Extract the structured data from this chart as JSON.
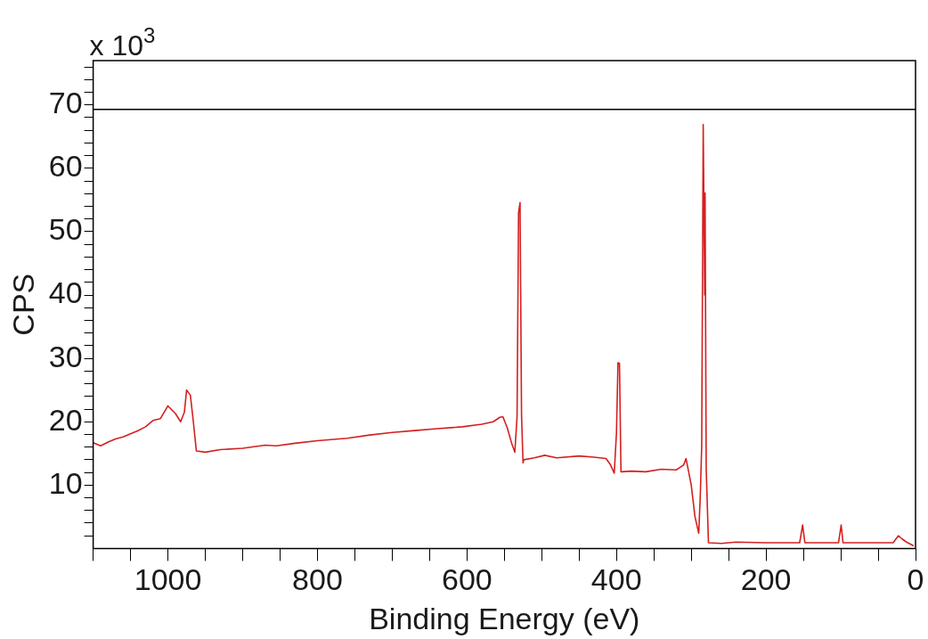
{
  "chart_data": {
    "type": "line",
    "xlabel": "Binding Energy (eV)",
    "ylabel": "CPS",
    "annotations": [
      "x 10$^{3}$"
    ],
    "xlim": [
      1100,
      0
    ],
    "ylim": [
      0,
      77
    ],
    "xticks": [
      {
        "value": 1100,
        "label": null
      },
      {
        "value": 1050,
        "label": null
      },
      1000,
      {
        "value": 950,
        "label": null
      },
      {
        "value": 900,
        "label": null
      },
      {
        "value": 850,
        "label": null
      },
      800,
      {
        "value": 750,
        "label": null
      },
      {
        "value": 700,
        "label": null
      },
      {
        "value": 650,
        "label": null
      },
      600,
      {
        "value": 550,
        "label": null
      },
      {
        "value": 500,
        "label": null
      },
      {
        "value": 450,
        "label": null
      },
      400,
      {
        "value": 350,
        "label": null
      },
      {
        "value": 300,
        "label": null
      },
      {
        "value": 250,
        "label": null
      },
      200,
      {
        "value": 150,
        "label": null
      },
      {
        "value": 100,
        "label": null
      },
      {
        "value": 50,
        "label": null
      },
      0
    ],
    "yticks": [
      {
        "value": 2,
        "label": null
      },
      {
        "value": 4,
        "label": null
      },
      {
        "value": 6,
        "label": null
      },
      {
        "value": 8,
        "label": null
      },
      10,
      {
        "value": 12,
        "label": null
      },
      {
        "value": 14,
        "label": null
      },
      {
        "value": 16,
        "label": null
      },
      {
        "value": 18,
        "label": null
      },
      20,
      {
        "value": 22,
        "label": null
      },
      {
        "value": 24,
        "label": null
      },
      {
        "value": 26,
        "label": null
      },
      {
        "value": 28,
        "label": null
      },
      30,
      {
        "value": 32,
        "label": null
      },
      {
        "value": 34,
        "label": null
      },
      {
        "value": 36,
        "label": null
      },
      {
        "value": 38,
        "label": null
      },
      40,
      {
        "value": 42,
        "label": null
      },
      {
        "value": 44,
        "label": null
      },
      {
        "value": 46,
        "label": null
      },
      {
        "value": 48,
        "label": null
      },
      50,
      {
        "value": 52,
        "label": null
      },
      {
        "value": 54,
        "label": null
      },
      {
        "value": 56,
        "label": null
      },
      {
        "value": 58,
        "label": null
      },
      60,
      {
        "value": 62,
        "label": null
      },
      {
        "value": 64,
        "label": null
      },
      {
        "value": 66,
        "label": null
      },
      {
        "value": 68,
        "label": null
      },
      70,
      {
        "value": 72,
        "label": null
      },
      {
        "value": 74,
        "label": null
      },
      {
        "value": 76,
        "label": null
      }
    ],
    "ref_lines": [
      {
        "axis": "y",
        "value": 69.3,
        "color": "#000000"
      }
    ],
    "marker": "none",
    "series": [
      {
        "color": "#d42020",
        "x": [
          1100,
          1090,
          1080,
          1070,
          1060,
          1050,
          1040,
          1030,
          1020,
          1010,
          1000,
          990,
          983,
          978,
          975,
          970,
          966,
          962,
          950,
          930,
          900,
          870,
          855,
          830,
          800,
          760,
          730,
          700,
          670,
          640,
          606,
          580,
          565,
          556,
          552,
          546,
          540,
          536,
          533,
          531,
          529,
          527,
          525,
          524,
          510,
          496,
          480,
          450,
          430,
          414,
          408,
          403,
          400,
          398,
          396,
          394,
          380,
          361,
          340,
          320,
          310,
          307,
          300,
          295,
          290,
          288,
          286,
          284,
          282,
          281.5,
          280,
          277,
          260,
          240,
          200,
          155,
          151,
          148,
          120,
          103,
          99.5,
          97,
          60,
          30,
          23,
          18,
          12,
          2.5
        ],
        "values": [
          16.7,
          16.2,
          16.8,
          17.3,
          17.6,
          18.1,
          18.6,
          19.2,
          20.2,
          20.5,
          22.5,
          21.3,
          20,
          21.5,
          25,
          24.2,
          20,
          15.4,
          15.2,
          15.6,
          15.8,
          16.3,
          16.2,
          16.6,
          17,
          17.4,
          17.9,
          18.3,
          18.6,
          18.9,
          19.2,
          19.6,
          20,
          20.7,
          20.8,
          19,
          16.5,
          15.2,
          20.8,
          53,
          54.6,
          21,
          13.5,
          14,
          14.3,
          14.7,
          14.3,
          14.6,
          14.4,
          14.2,
          13.2,
          11.9,
          18.3,
          29.3,
          29.2,
          12.1,
          12.2,
          12.1,
          12.5,
          12.4,
          13.2,
          14.2,
          10,
          5,
          2.4,
          8,
          16.2,
          66.9,
          40,
          56.1,
          12.6,
          0.9,
          0.8,
          1.0,
          0.9,
          0.9,
          3.7,
          0.9,
          0.9,
          0.9,
          3.7,
          0.9,
          0.9,
          0.9,
          2.0,
          1.5,
          1.0,
          0.4
        ]
      }
    ]
  }
}
